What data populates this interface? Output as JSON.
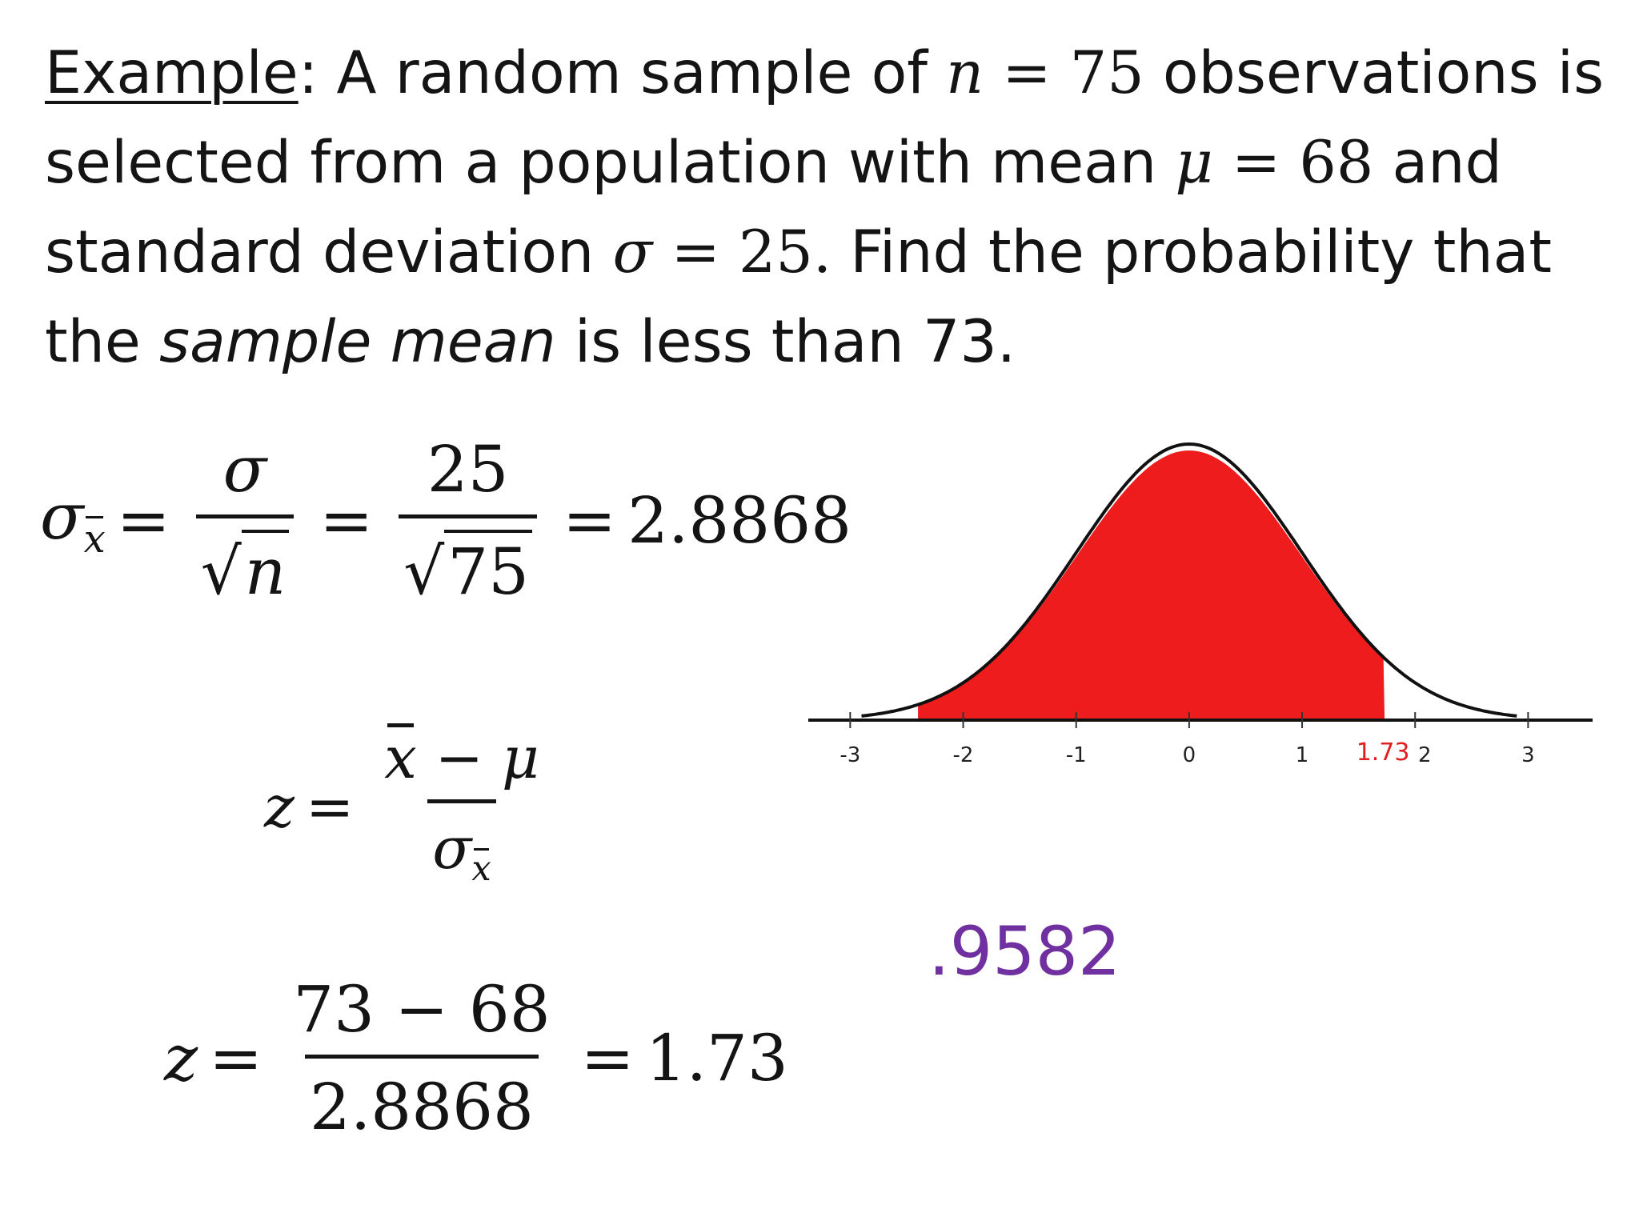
{
  "problem": {
    "label": "Example",
    "line1_a": ": A random sample of ",
    "line1_var": "n",
    "line1_eq": " = 75",
    "line1_b": " observations is",
    "line2_a": "selected from a population with mean ",
    "line2_var": "μ",
    "line2_eq": " = 68",
    "line2_b": " and",
    "line3_a": "standard deviation ",
    "line3_var": "σ",
    "line3_eq": " = 25.",
    "line3_b": "  Find the probability that",
    "line4_a": "the ",
    "line4_it": "sample mean",
    "line4_b": " is less than 73."
  },
  "eq1": {
    "lhs_sym": "σ",
    "lhs_sub": "x",
    "frac1_num": "σ",
    "frac1_den": "n",
    "frac2_num": "25",
    "frac2_den": "75",
    "result": "2.8868"
  },
  "eq2": {
    "lhs": "z",
    "num_x": "x",
    "num_minus": "−",
    "num_mu": "μ",
    "den_sym": "σ",
    "den_sub": "x"
  },
  "eq3": {
    "lhs": "z",
    "num": "73 − 68",
    "den": "2.8868",
    "result": "1.73"
  },
  "chart_data": {
    "type": "area",
    "x_ticks": [
      "-3",
      "-2",
      "-1",
      "0",
      "1",
      "2",
      "3"
    ],
    "xlim": [
      -3.3,
      3.5
    ],
    "shade_to": 1.73,
    "marker_label": "1.73",
    "shade_color": "#ee1c1c",
    "curve_color": "#111111"
  },
  "answer": ".9582"
}
